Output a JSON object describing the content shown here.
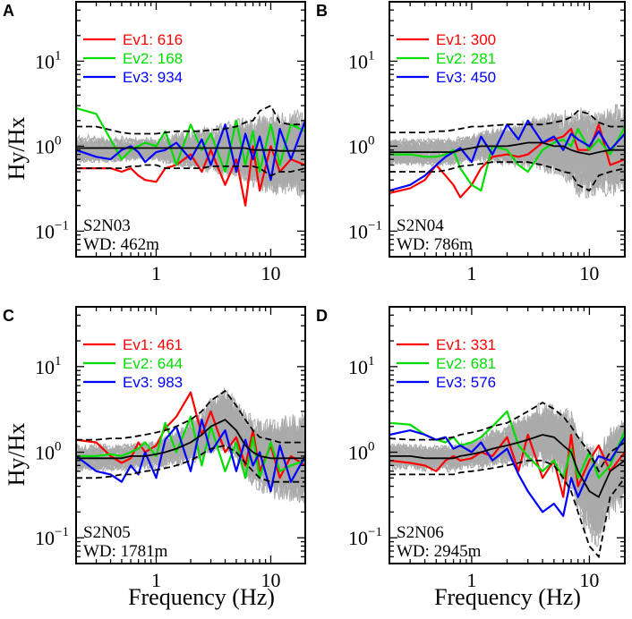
{
  "chart_data": {
    "type": "line",
    "figure_ylabel": "Hy/Hx",
    "figure_xlabel": "Frequency (Hz)",
    "xscale": "log",
    "yscale": "log",
    "xlim": [
      0.2,
      20
    ],
    "ylim": [
      0.05,
      50
    ],
    "xticks": [
      {
        "value": 1,
        "label": "1"
      },
      {
        "value": 10,
        "label": "10"
      }
    ],
    "yticks": [
      {
        "value": 0.1,
        "base": "10",
        "exp": "−1"
      },
      {
        "value": 1,
        "base": "10",
        "exp": "0"
      },
      {
        "value": 10,
        "base": "10",
        "exp": "1"
      }
    ],
    "colors": {
      "ev1": "#ff0000",
      "ev2": "#00dd00",
      "ev3": "#0000ff",
      "background": "#aaaaaa",
      "median": "#000000"
    },
    "panels": [
      {
        "letter": "A",
        "station": "S2N03",
        "water_depth": "WD: 462m",
        "legend": [
          {
            "name": "Ev1: 616",
            "color": "#ff0000"
          },
          {
            "name": "Ev2: 168",
            "color": "#00dd00"
          },
          {
            "name": "Ev3: 934",
            "color": "#0000ff"
          }
        ],
        "freq": [
          0.2,
          0.3,
          0.4,
          0.5,
          0.6,
          0.7,
          0.8,
          1.0,
          1.2,
          1.5,
          2.0,
          2.5,
          3.0,
          4.0,
          5.0,
          6.0,
          7.0,
          8.0,
          10.0,
          12.0,
          15.0,
          20.0
        ],
        "median": [
          0.95,
          0.95,
          0.95,
          0.95,
          0.95,
          0.95,
          0.95,
          0.95,
          0.95,
          0.95,
          0.95,
          0.95,
          0.95,
          0.95,
          0.95,
          0.95,
          0.9,
          0.9,
          0.9,
          0.88,
          0.88,
          0.88
        ],
        "upper": [
          1.7,
          1.7,
          1.55,
          1.45,
          1.4,
          1.4,
          1.4,
          1.4,
          1.45,
          1.5,
          1.5,
          1.5,
          1.55,
          1.6,
          1.7,
          1.9,
          2.0,
          2.6,
          3.0,
          1.9,
          1.8,
          1.8
        ],
        "lower": [
          0.55,
          0.55,
          0.55,
          0.55,
          0.58,
          0.58,
          0.6,
          0.6,
          0.55,
          0.55,
          0.55,
          0.55,
          0.58,
          0.58,
          0.58,
          0.58,
          0.58,
          0.55,
          0.45,
          0.5,
          0.5,
          0.55
        ],
        "series": [
          {
            "name": "Ev1",
            "values": [
              0.55,
              0.55,
              0.55,
              0.5,
              0.55,
              0.45,
              0.4,
              0.38,
              0.55,
              0.6,
              0.8,
              0.5,
              0.9,
              0.35,
              0.7,
              0.2,
              1.0,
              0.3,
              1.0,
              0.5,
              0.7,
              0.6
            ]
          },
          {
            "name": "Ev2",
            "values": [
              2.8,
              2.4,
              1.2,
              0.7,
              0.9,
              1.0,
              1.1,
              1.0,
              1.5,
              0.6,
              1.8,
              0.9,
              1.4,
              0.5,
              2.0,
              0.6,
              1.5,
              0.5,
              1.8,
              0.6,
              1.8,
              1.5
            ]
          },
          {
            "name": "Ev3",
            "values": [
              0.9,
              0.75,
              0.7,
              0.9,
              1.0,
              0.85,
              0.65,
              0.85,
              0.9,
              1.1,
              0.7,
              1.2,
              0.6,
              1.8,
              0.5,
              1.4,
              0.7,
              1.3,
              0.4,
              1.6,
              0.7,
              2.0
            ]
          }
        ]
      },
      {
        "letter": "B",
        "station": "S2N04",
        "water_depth": "WD: 786m",
        "legend": [
          {
            "name": "Ev1: 300",
            "color": "#ff0000"
          },
          {
            "name": "Ev2: 281",
            "color": "#00dd00"
          },
          {
            "name": "Ev3: 450",
            "color": "#0000ff"
          }
        ],
        "freq": [
          0.2,
          0.3,
          0.4,
          0.5,
          0.6,
          0.7,
          0.8,
          1.0,
          1.2,
          1.5,
          2.0,
          2.5,
          3.0,
          4.0,
          5.0,
          6.0,
          7.0,
          8.0,
          10.0,
          12.0,
          15.0,
          20.0
        ],
        "median": [
          0.85,
          0.85,
          0.85,
          0.85,
          0.85,
          0.85,
          0.9,
          0.95,
          1.0,
          1.0,
          1.0,
          1.05,
          1.1,
          1.1,
          1.0,
          1.0,
          0.9,
          0.85,
          0.8,
          0.85,
          0.9,
          0.9
        ],
        "upper": [
          1.45,
          1.45,
          1.45,
          1.5,
          1.5,
          1.55,
          1.6,
          1.7,
          1.7,
          1.75,
          1.8,
          1.8,
          1.8,
          1.8,
          1.9,
          2.0,
          2.2,
          2.6,
          2.4,
          1.9,
          1.7,
          1.7
        ],
        "lower": [
          0.5,
          0.5,
          0.5,
          0.5,
          0.52,
          0.55,
          0.58,
          0.6,
          0.62,
          0.65,
          0.65,
          0.65,
          0.65,
          0.6,
          0.55,
          0.5,
          0.48,
          0.35,
          0.3,
          0.45,
          0.5,
          0.55
        ],
        "series": [
          {
            "name": "Ev1",
            "values": [
              0.28,
              0.32,
              0.4,
              0.6,
              0.45,
              0.35,
              0.25,
              0.35,
              0.55,
              0.75,
              0.8,
              0.75,
              0.8,
              1.1,
              1.2,
              1.3,
              1.6,
              0.9,
              0.9,
              1.8,
              0.6,
              0.7
            ]
          },
          {
            "name": "Ev2",
            "values": [
              0.8,
              0.8,
              0.75,
              0.75,
              0.8,
              0.9,
              0.55,
              0.35,
              0.3,
              1.0,
              0.9,
              0.6,
              0.5,
              0.9,
              1.1,
              1.2,
              1.0,
              1.6,
              0.9,
              1.2,
              0.8,
              1.7
            ]
          },
          {
            "name": "Ev3",
            "values": [
              0.3,
              0.35,
              0.45,
              0.6,
              0.75,
              0.85,
              0.95,
              0.65,
              1.3,
              0.8,
              1.8,
              1.2,
              2.0,
              1.1,
              1.3,
              0.9,
              1.4,
              1.2,
              1.0,
              1.5,
              0.9,
              1.4
            ]
          }
        ]
      },
      {
        "letter": "C",
        "station": "S2N05",
        "water_depth": "WD: 1781m",
        "legend": [
          {
            "name": "Ev1: 461",
            "color": "#ff0000"
          },
          {
            "name": "Ev2: 644",
            "color": "#00dd00"
          },
          {
            "name": "Ev3: 983",
            "color": "#0000ff"
          }
        ],
        "freq": [
          0.2,
          0.3,
          0.4,
          0.5,
          0.6,
          0.7,
          0.8,
          1.0,
          1.2,
          1.5,
          2.0,
          2.5,
          3.0,
          4.0,
          5.0,
          6.0,
          7.0,
          8.0,
          10.0,
          12.0,
          15.0,
          20.0
        ],
        "median": [
          0.85,
          0.85,
          0.85,
          0.85,
          0.9,
          0.9,
          0.9,
          0.95,
          1.0,
          1.1,
          1.3,
          1.6,
          2.0,
          2.4,
          1.8,
          1.2,
          1.0,
          0.9,
          0.85,
          0.85,
          0.85,
          0.85
        ],
        "upper": [
          1.4,
          1.4,
          1.45,
          1.45,
          1.5,
          1.55,
          1.6,
          1.7,
          1.8,
          2.0,
          2.4,
          3.0,
          4.0,
          5.2,
          3.5,
          2.4,
          1.8,
          1.5,
          1.4,
          1.3,
          1.3,
          1.3
        ],
        "lower": [
          0.5,
          0.5,
          0.52,
          0.55,
          0.55,
          0.58,
          0.6,
          0.62,
          0.65,
          0.7,
          0.8,
          0.95,
          1.1,
          1.2,
          1.0,
          0.75,
          0.6,
          0.5,
          0.45,
          0.45,
          0.45,
          0.45
        ],
        "series": [
          {
            "name": "Ev1",
            "values": [
              1.4,
              1.3,
              0.9,
              0.75,
              0.85,
              1.3,
              1.0,
              1.2,
              1.9,
              2.6,
              5.0,
              1.6,
              3.0,
              1.0,
              1.5,
              0.7,
              1.8,
              0.6,
              1.2,
              0.5,
              0.9,
              0.7
            ]
          },
          {
            "name": "Ev2",
            "values": [
              0.9,
              0.9,
              0.95,
              0.9,
              1.0,
              1.1,
              1.3,
              0.9,
              2.2,
              1.0,
              2.6,
              0.7,
              2.0,
              0.6,
              1.3,
              0.5,
              1.5,
              0.5,
              1.3,
              0.6,
              0.7,
              0.8
            ]
          },
          {
            "name": "Ev3",
            "values": [
              0.9,
              0.6,
              0.55,
              0.45,
              0.7,
              0.55,
              1.0,
              0.5,
              1.4,
              2.0,
              0.6,
              2.4,
              1.0,
              1.8,
              0.6,
              1.4,
              0.7,
              1.0,
              0.35,
              1.2,
              0.45,
              0.9
            ]
          }
        ]
      },
      {
        "letter": "D",
        "station": "S2N06",
        "water_depth": "WD: 2945m",
        "legend": [
          {
            "name": "Ev1: 331",
            "color": "#ff0000"
          },
          {
            "name": "Ev2: 681",
            "color": "#00dd00"
          },
          {
            "name": "Ev3: 576",
            "color": "#0000ff"
          }
        ],
        "freq": [
          0.2,
          0.3,
          0.4,
          0.5,
          0.6,
          0.7,
          0.8,
          1.0,
          1.2,
          1.5,
          2.0,
          2.5,
          3.0,
          4.0,
          5.0,
          6.0,
          7.0,
          8.0,
          10.0,
          12.0,
          15.0,
          20.0
        ],
        "median": [
          0.9,
          0.9,
          0.85,
          0.85,
          0.85,
          0.85,
          0.9,
          0.95,
          1.0,
          1.1,
          1.2,
          1.3,
          1.4,
          1.6,
          1.5,
          1.2,
          1.0,
          0.6,
          0.35,
          0.3,
          0.6,
          0.8
        ],
        "upper": [
          1.45,
          1.4,
          1.4,
          1.4,
          1.45,
          1.5,
          1.6,
          1.7,
          1.8,
          2.0,
          2.2,
          2.6,
          3.0,
          3.8,
          3.2,
          2.6,
          2.0,
          1.5,
          1.0,
          0.6,
          1.0,
          1.3
        ],
        "lower": [
          0.55,
          0.55,
          0.55,
          0.55,
          0.55,
          0.55,
          0.58,
          0.6,
          0.62,
          0.65,
          0.7,
          0.75,
          0.8,
          0.8,
          0.7,
          0.5,
          0.35,
          0.2,
          0.08,
          0.06,
          0.3,
          0.5
        ],
        "series": [
          {
            "name": "Ev1",
            "values": [
              0.8,
              0.75,
              0.7,
              0.6,
              0.8,
              0.9,
              0.8,
              0.85,
              1.0,
              0.9,
              1.5,
              0.6,
              1.6,
              0.5,
              0.8,
              0.3,
              1.6,
              0.4,
              0.8,
              1.2,
              0.6,
              1.0
            ]
          },
          {
            "name": "Ev2",
            "values": [
              2.2,
              2.1,
              1.6,
              1.4,
              1.3,
              1.5,
              1.2,
              1.3,
              1.5,
              2.0,
              3.0,
              1.2,
              0.9,
              0.6,
              0.8,
              0.5,
              1.1,
              0.5,
              1.0,
              0.5,
              0.7,
              1.8
            ]
          },
          {
            "name": "Ev3",
            "values": [
              1.6,
              1.8,
              1.6,
              1.4,
              1.5,
              1.1,
              1.2,
              1.0,
              1.3,
              0.8,
              1.1,
              0.55,
              0.35,
              0.2,
              0.25,
              0.18,
              0.5,
              0.3,
              0.6,
              0.9,
              0.8,
              1.5
            ]
          }
        ]
      }
    ]
  }
}
